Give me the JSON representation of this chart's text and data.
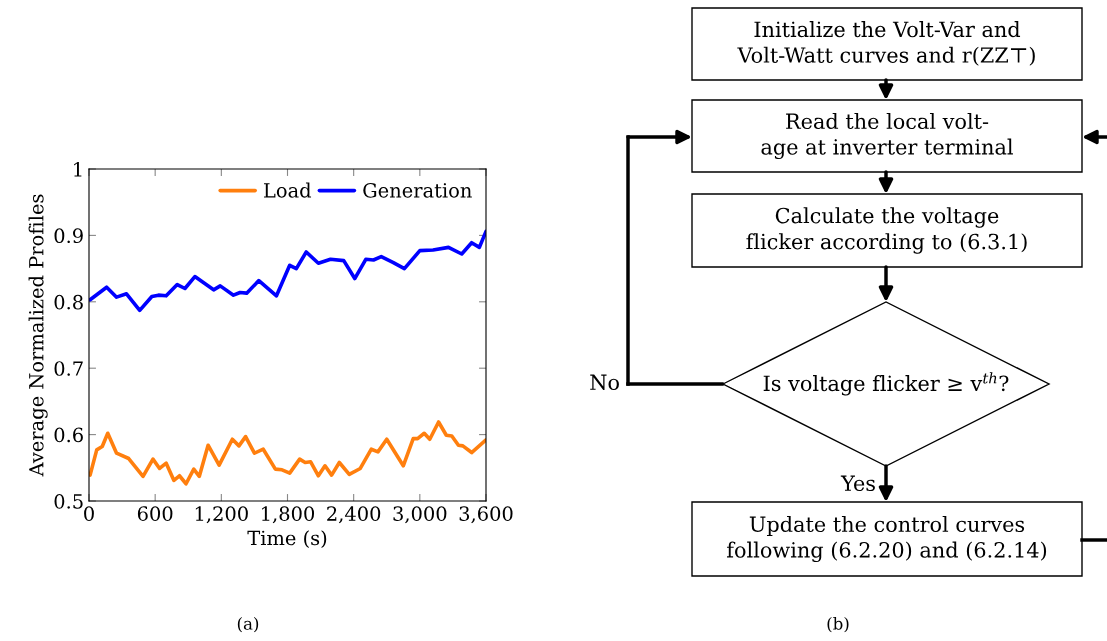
{
  "chart_data": [
    {
      "type": "line",
      "xlabel": "Time (s)",
      "ylabel": "Average Normalized Profiles",
      "xlim": [
        0,
        3600
      ],
      "xticks": [
        0,
        600,
        {
          "value": 1200,
          "label": "1,200"
        },
        {
          "value": 1800,
          "label": "1,800"
        },
        {
          "value": 2400,
          "label": "2,400"
        },
        {
          "value": 3000,
          "label": "3,000"
        },
        {
          "value": 3600,
          "label": "3,600"
        }
      ],
      "ylim": [
        0.5,
        1
      ],
      "yticks": [
        0.5,
        0.6,
        0.7,
        0.8,
        0.9,
        1
      ],
      "grid": false,
      "legend": "top right",
      "marker": "none",
      "line_style": "solid",
      "annotations": [
        "(a)"
      ],
      "series": [
        {
          "name": "Load",
          "color": "#ff7f0e",
          "x": [
            10,
            70,
            120,
            170,
            250,
            360,
            490,
            580,
            640,
            700,
            770,
            820,
            880,
            950,
            1000,
            1080,
            1180,
            1300,
            1360,
            1420,
            1500,
            1580,
            1690,
            1750,
            1820,
            1910,
            1960,
            2010,
            2080,
            2140,
            2200,
            2270,
            2360,
            2460,
            2560,
            2620,
            2700,
            2850,
            2940,
            2980,
            3040,
            3090,
            3170,
            3240,
            3290,
            3350,
            3390,
            3470,
            3600
          ],
          "values": [
            0.539,
            0.577,
            0.582,
            0.602,
            0.572,
            0.564,
            0.537,
            0.563,
            0.549,
            0.557,
            0.531,
            0.538,
            0.526,
            0.548,
            0.537,
            0.584,
            0.554,
            0.593,
            0.583,
            0.597,
            0.572,
            0.578,
            0.548,
            0.547,
            0.542,
            0.563,
            0.558,
            0.559,
            0.538,
            0.553,
            0.539,
            0.558,
            0.54,
            0.549,
            0.578,
            0.574,
            0.593,
            0.553,
            0.594,
            0.594,
            0.602,
            0.593,
            0.619,
            0.599,
            0.598,
            0.584,
            0.583,
            0.573,
            0.592
          ]
        },
        {
          "name": "Generation",
          "color": "#0000ff",
          "x": [
            10,
            160,
            250,
            340,
            460,
            570,
            630,
            700,
            800,
            870,
            960,
            1130,
            1190,
            1310,
            1370,
            1430,
            1540,
            1700,
            1820,
            1880,
            1970,
            2080,
            2190,
            2310,
            2410,
            2510,
            2580,
            2650,
            2760,
            2860,
            3000,
            3120,
            3260,
            3380,
            3470,
            3540,
            3600
          ],
          "values": [
            0.803,
            0.822,
            0.807,
            0.812,
            0.787,
            0.808,
            0.81,
            0.809,
            0.826,
            0.82,
            0.838,
            0.818,
            0.824,
            0.81,
            0.814,
            0.813,
            0.832,
            0.809,
            0.855,
            0.85,
            0.875,
            0.858,
            0.864,
            0.862,
            0.835,
            0.864,
            0.863,
            0.868,
            0.859,
            0.85,
            0.877,
            0.878,
            0.882,
            0.872,
            0.889,
            0.882,
            0.906
          ]
        }
      ]
    },
    {
      "type": "other",
      "annotations": [
        "Initialize the Volt-Var and\nVolt-Watt curves and r(ZZ⊤)",
        "Read the local volt-\nage at inverter terminal",
        "Calculate the voltage\nflicker according to (6.3.1)",
        "Is voltage flicker ≥ v$^{th}$?",
        "Update the control curves\nfollowing (6.2.20) and (6.2.14)",
        "No",
        "Yes",
        "(b)"
      ]
    }
  ]
}
